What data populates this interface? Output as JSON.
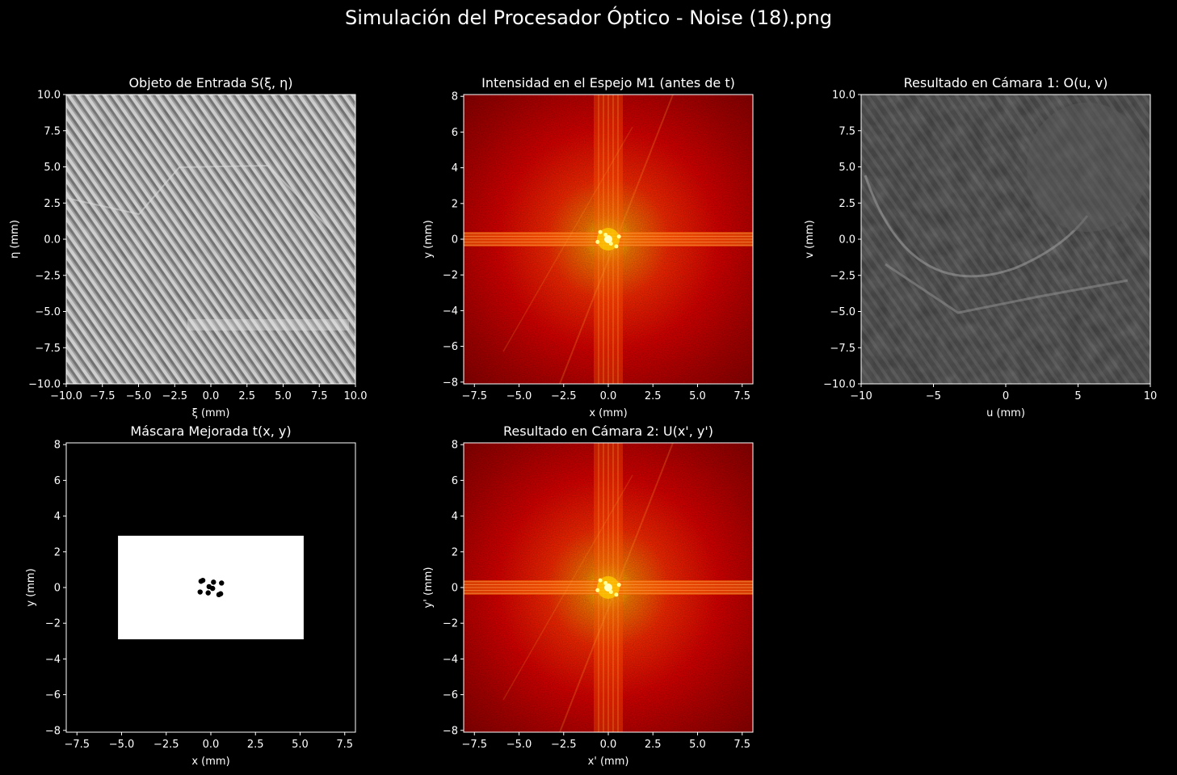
{
  "figure": {
    "suptitle": "Simulación del Procesador Óptico - Noise (18).png",
    "background": "#000000",
    "text_color": "#ffffff"
  },
  "chart_data": [
    {
      "id": "input-object",
      "type": "heatmap",
      "title": "Objeto de Entrada S(ξ, η)",
      "xlabel": "ξ (mm)",
      "ylabel": "η (mm)",
      "xlim": [
        -10,
        10
      ],
      "ylim": [
        -10,
        10
      ],
      "xticks": [
        -10,
        -7.5,
        -5,
        -2.5,
        0,
        2.5,
        5,
        7.5,
        10
      ],
      "xtick_labels": [
        "−10.0",
        "−7.5",
        "−5.0",
        "−2.5",
        "0.0",
        "2.5",
        "5.0",
        "7.5",
        "10.0"
      ],
      "yticks": [
        10,
        7.5,
        5,
        2.5,
        0,
        -2.5,
        -5,
        -7.5,
        -10
      ],
      "ytick_labels": [
        "10.0",
        "7.5",
        "5.0",
        "2.5",
        "0.0",
        "−2.5",
        "−5.0",
        "−7.5",
        "−10.0"
      ],
      "colormap": "gray",
      "content": "grayscale photograph overlaid with diagonal periodic noise stripes"
    },
    {
      "id": "mirror-intensity",
      "type": "heatmap",
      "title": "Intensidad en el Espejo M1 (antes de t)",
      "xlabel": "x (mm)",
      "ylabel": "y (mm)",
      "xlim": [
        -8.1,
        8.1
      ],
      "ylim": [
        -8.1,
        8.1
      ],
      "xticks": [
        -7.5,
        -5,
        -2.5,
        0,
        2.5,
        5,
        7.5
      ],
      "xtick_labels": [
        "−7.5",
        "−5.0",
        "−2.5",
        "0.0",
        "2.5",
        "5.0",
        "7.5"
      ],
      "yticks": [
        8,
        6,
        4,
        2,
        0,
        -2,
        -4,
        -6,
        -8
      ],
      "ytick_labels": [
        "8",
        "6",
        "4",
        "2",
        "0",
        "−2",
        "−4",
        "−6",
        "−8"
      ],
      "colormap": "hot",
      "content": "Fourier spectrum, bright center with cross-shaped streaks and symmetric noise peaks near the origin"
    },
    {
      "id": "camera1-result",
      "type": "heatmap",
      "title": "Resultado en Cámara 1: O(u, v)",
      "xlabel": "u (mm)",
      "ylabel": "v (mm)",
      "xlim": [
        -10,
        10
      ],
      "ylim": [
        -10,
        10
      ],
      "xticks": [
        -10,
        -5,
        0,
        5,
        10
      ],
      "xtick_labels": [
        "−10",
        "−5",
        "0",
        "5",
        "10"
      ],
      "yticks": [
        10,
        7.5,
        5,
        2.5,
        0,
        -2.5,
        -5,
        -7.5,
        -10
      ],
      "ytick_labels": [
        "10.0",
        "7.5",
        "5.0",
        "2.5",
        "0.0",
        "−2.5",
        "−5.0",
        "−7.5",
        "−10.0"
      ],
      "colormap": "gray",
      "content": "filtered image, rotated view of the scene with residual low-contrast ripple"
    },
    {
      "id": "improved-mask",
      "type": "heatmap",
      "title": "Máscara Mejorada t(x, y)",
      "xlabel": "x (mm)",
      "ylabel": "y (mm)",
      "xlim": [
        -8.1,
        8.1
      ],
      "ylim": [
        -8.1,
        8.1
      ],
      "xticks": [
        -7.5,
        -5,
        -2.5,
        0,
        2.5,
        5,
        7.5
      ],
      "xtick_labels": [
        "−7.5",
        "−5.0",
        "−2.5",
        "0.0",
        "2.5",
        "5.0",
        "7.5"
      ],
      "yticks": [
        8,
        6,
        4,
        2,
        0,
        -2,
        -4,
        -6,
        -8
      ],
      "ytick_labels": [
        "8",
        "6",
        "4",
        "2",
        "0",
        "−2",
        "−4",
        "−6",
        "−8"
      ],
      "colormap": "gray",
      "passband": {
        "x": [
          -5.2,
          5.2
        ],
        "y": [
          -2.9,
          2.9
        ]
      },
      "notch_centers": [
        [
          -0.45,
          0.4
        ],
        [
          0.45,
          -0.4
        ],
        [
          -0.1,
          0.05
        ],
        [
          0.1,
          -0.05
        ],
        [
          0.6,
          0.25
        ],
        [
          -0.6,
          -0.25
        ],
        [
          -0.15,
          -0.3
        ],
        [
          0.15,
          0.3
        ],
        [
          0.55,
          -0.35
        ],
        [
          -0.55,
          0.35
        ]
      ]
    },
    {
      "id": "camera2-result",
      "type": "heatmap",
      "title": "Resultado en Cámara 2: U(x', y')",
      "xlabel": "x' (mm)",
      "ylabel": "y' (mm)",
      "xlim": [
        -8.1,
        8.1
      ],
      "ylim": [
        -8.1,
        8.1
      ],
      "xticks": [
        -7.5,
        -5,
        -2.5,
        0,
        2.5,
        5,
        7.5
      ],
      "xtick_labels": [
        "−7.5",
        "−5.0",
        "−2.5",
        "0.0",
        "2.5",
        "5.0",
        "7.5"
      ],
      "yticks": [
        8,
        6,
        4,
        2,
        0,
        -2,
        -4,
        -6,
        -8
      ],
      "ytick_labels": [
        "8",
        "6",
        "4",
        "2",
        "0",
        "−2",
        "−4",
        "−6",
        "−8"
      ],
      "colormap": "hot",
      "content": "Fourier spectrum of the filtered field, bright center with cross-shaped streaks"
    }
  ]
}
